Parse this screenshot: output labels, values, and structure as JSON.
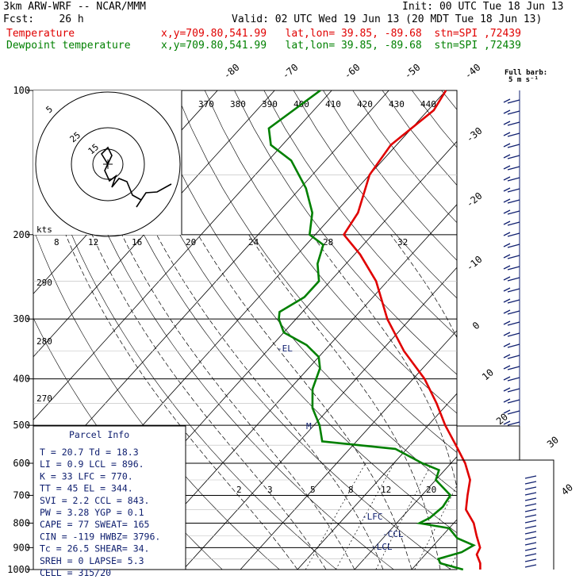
{
  "header": {
    "line1_left": "3km ARW-WRF -- NCAR/MMM",
    "line1_right": "Init: 00 UTC Tue 18 Jun 13",
    "line2_left": "Fcst:    26 h",
    "line2_right": "Valid: 02 UTC Wed 19 Jun 13 (20 MDT Tue 18 Jun 13)",
    "temp_label": "Temperature",
    "dew_label": "Dewpoint temperature",
    "temp_info": "x,y=709.80,541.99   lat,lon= 39.85, -89.68  stn=SPI ,72439",
    "dew_info": "x,y=709.80,541.99   lat,lon= 39.85, -89.68  stn=SPI ,72439"
  },
  "colors": {
    "temperature": "#e00000",
    "dewpoint": "#008000",
    "grid": "#000000",
    "labels": "#102070"
  },
  "chart_data": {
    "type": "line",
    "subtype": "skew-T log-p sounding",
    "pressure_levels": [
      "100",
      "200",
      "300",
      "400",
      "500",
      "600",
      "700",
      "800",
      "900",
      "1000"
    ],
    "top_temp_ticks": [
      "-80",
      "-70",
      "-60",
      "-50",
      "-40"
    ],
    "right_temp_ticks": [
      "-30",
      "-20",
      "-10",
      "0",
      "10",
      "20",
      "30",
      "40"
    ],
    "theta_labels": [
      "370",
      "380",
      "390",
      "400",
      "410",
      "420",
      "430",
      "440"
    ],
    "mixing_labels_upper": [
      "8",
      "12",
      "16",
      "20",
      "24",
      "28",
      "32"
    ],
    "mixing_labels_lower": [
      "2",
      "3",
      "5",
      "8",
      "12",
      "20"
    ],
    "left_theta_labels": [
      "290",
      "280",
      "270"
    ],
    "series": [
      {
        "name": "Temperature",
        "color": "#e00000",
        "points": [
          [
            1000,
            22
          ],
          [
            970,
            21
          ],
          [
            930,
            19
          ],
          [
            900,
            18.5
          ],
          [
            850,
            16
          ],
          [
            800,
            13.5
          ],
          [
            750,
            10
          ],
          [
            700,
            8
          ],
          [
            650,
            6
          ],
          [
            600,
            2.5
          ],
          [
            550,
            -2
          ],
          [
            500,
            -7
          ],
          [
            450,
            -12
          ],
          [
            400,
            -18
          ],
          [
            350,
            -26
          ],
          [
            300,
            -34
          ],
          [
            250,
            -42
          ],
          [
            220,
            -49
          ],
          [
            200,
            -55
          ],
          [
            180,
            -56
          ],
          [
            150,
            -60
          ],
          [
            130,
            -61
          ],
          [
            110,
            -59
          ],
          [
            100,
            -60
          ]
        ]
      },
      {
        "name": "Dewpoint temperature",
        "color": "#008000",
        "points": [
          [
            1000,
            19
          ],
          [
            970,
            14
          ],
          [
            950,
            13
          ],
          [
            920,
            16
          ],
          [
            890,
            17
          ],
          [
            860,
            13
          ],
          [
            820,
            10
          ],
          [
            800,
            4
          ],
          [
            780,
            5
          ],
          [
            740,
            5.5
          ],
          [
            700,
            5
          ],
          [
            650,
            0
          ],
          [
            620,
            -1
          ],
          [
            600,
            -5
          ],
          [
            560,
            -12
          ],
          [
            540,
            -26
          ],
          [
            500,
            -29
          ],
          [
            460,
            -33
          ],
          [
            420,
            -36
          ],
          [
            380,
            -38
          ],
          [
            360,
            -40
          ],
          [
            340,
            -44
          ],
          [
            320,
            -50
          ],
          [
            300,
            -53
          ],
          [
            290,
            -54
          ],
          [
            270,
            -52
          ],
          [
            250,
            -52
          ],
          [
            230,
            -55
          ],
          [
            210,
            -57
          ],
          [
            200,
            -61
          ],
          [
            180,
            -64
          ],
          [
            160,
            -69
          ],
          [
            140,
            -76
          ],
          [
            130,
            -82
          ],
          [
            120,
            -85
          ],
          [
            100,
            -82
          ]
        ]
      }
    ],
    "annotations": [
      "-EL",
      "-LFC",
      "-CCL",
      "-LCL",
      "M"
    ]
  },
  "hodograph": {
    "units": "kts",
    "ring_labels": [
      "5",
      "25",
      "15"
    ],
    "speed_labels": [
      "8",
      "12",
      "16",
      "20"
    ]
  },
  "parcel_info": {
    "title": "Parcel Info",
    "rows": [
      "T  =   20.7  Td =  18.3",
      "LI =    0.9  LCL =  896.",
      "K  =     33  LFC =  770.",
      "TT =     45  EL  =  344.",
      "SVI =   2.2  CCL =  843.",
      "PW =   3.28  YGP =   0.1",
      "CAPE =   77  SWEAT=  165",
      "CIN =  -119  HWBZ= 3796.",
      "Tc =   26.5  SHEAR=  34.",
      "SREH =    0  LAPSE=  5.3",
      "CELL = 315/20"
    ]
  },
  "wind": {
    "barb_label_1": "Full barb:",
    "barb_label_2": "5 m s⁻¹"
  }
}
